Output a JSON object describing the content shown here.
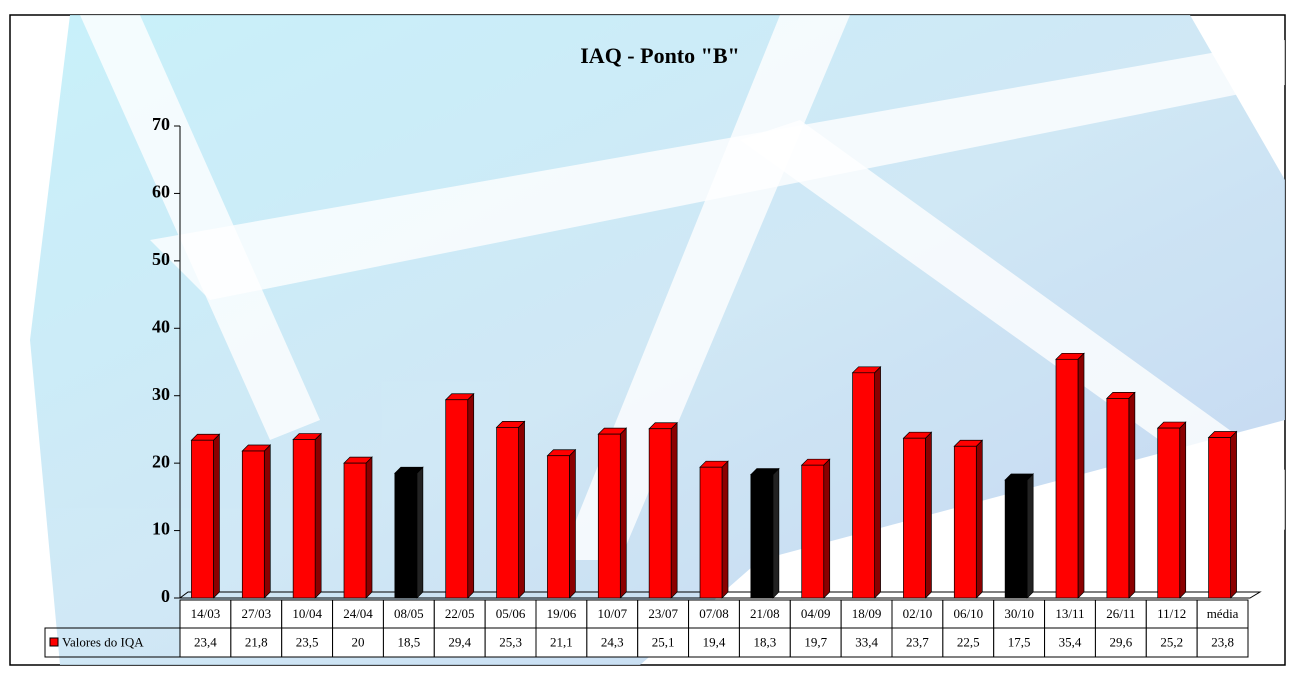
{
  "chart_data": {
    "type": "bar3d",
    "title": "IAQ - Ponto \"B\"",
    "categories": [
      "14/03",
      "27/03",
      "10/04",
      "24/04",
      "08/05",
      "22/05",
      "05/06",
      "19/06",
      "10/07",
      "23/07",
      "07/08",
      "21/08",
      "04/09",
      "18/09",
      "02/10",
      "06/10",
      "30/10",
      "13/11",
      "26/11",
      "11/12",
      "média"
    ],
    "series": [
      {
        "name": "Valores do IQA",
        "color": "#ff0000",
        "values": [
          23.4,
          21.8,
          23.5,
          20,
          18.5,
          29.4,
          25.3,
          21.1,
          24.3,
          25.1,
          19.4,
          18.3,
          19.7,
          33.4,
          23.7,
          22.5,
          17.5,
          35.4,
          29.6,
          25.2,
          23.8
        ],
        "value_labels": [
          "23,4",
          "21,8",
          "23,5",
          "20",
          "18,5",
          "29,4",
          "25,3",
          "21,1",
          "24,3",
          "25,1",
          "19,4",
          "18,3",
          "19,7",
          "33,4",
          "23,7",
          "22,5",
          "17,5",
          "35,4",
          "29,6",
          "25,2",
          "23,8"
        ],
        "bar_colors": [
          "#ff0000",
          "#ff0000",
          "#ff0000",
          "#ff0000",
          "#000000",
          "#ff0000",
          "#ff0000",
          "#ff0000",
          "#ff0000",
          "#ff0000",
          "#ff0000",
          "#000000",
          "#ff0000",
          "#ff0000",
          "#ff0000",
          "#ff0000",
          "#000000",
          "#ff0000",
          "#ff0000",
          "#ff0000",
          "#ff0000"
        ]
      }
    ],
    "ylim": [
      0,
      70
    ],
    "yticks": [
      0,
      10,
      20,
      30,
      40,
      50,
      60,
      70
    ]
  }
}
